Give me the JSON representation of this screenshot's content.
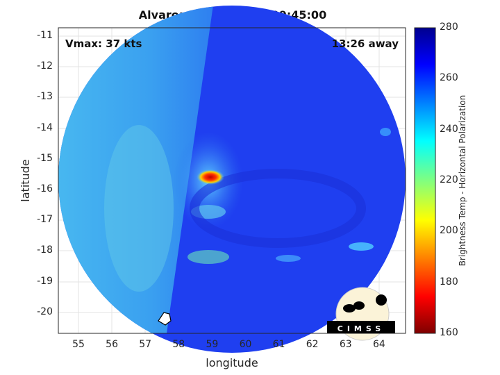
{
  "title": "Alvaro: 25-Aug-2024 09:45:00",
  "annotations": {
    "vmax": "Vmax: 37 kts",
    "time_away": "13:26 away"
  },
  "chart_data": {
    "type": "heatmap",
    "title": "Alvaro: 25-Aug-2024 09:45:00",
    "xlabel": "longitude",
    "ylabel": "latitude",
    "xlim": [
      54.4,
      64.8
    ],
    "ylim": [
      -20.7,
      -10.7
    ],
    "x_ticks": [
      "55",
      "56",
      "57",
      "58",
      "59",
      "60",
      "61",
      "62",
      "63",
      "64"
    ],
    "y_ticks": [
      "-11",
      "-12",
      "-13",
      "-14",
      "-15",
      "-16",
      "-17",
      "-18",
      "-19",
      "-20"
    ],
    "grid": true,
    "colorbar": {
      "label": "Brightness Temp - Horizontal Polarization",
      "colormap": "jet",
      "range": [
        160,
        280
      ],
      "ticks": [
        "280",
        "260",
        "240",
        "220",
        "200",
        "180",
        "160"
      ]
    },
    "features": {
      "coldest_spot": {
        "lon": 58.9,
        "lat": -15.6
      }
    }
  },
  "logo": {
    "text": "CIMSS"
  },
  "colors": {
    "background_blue": "#1a3cf0",
    "left_swath": "#3a9cf2",
    "hot": "#e0101a"
  }
}
